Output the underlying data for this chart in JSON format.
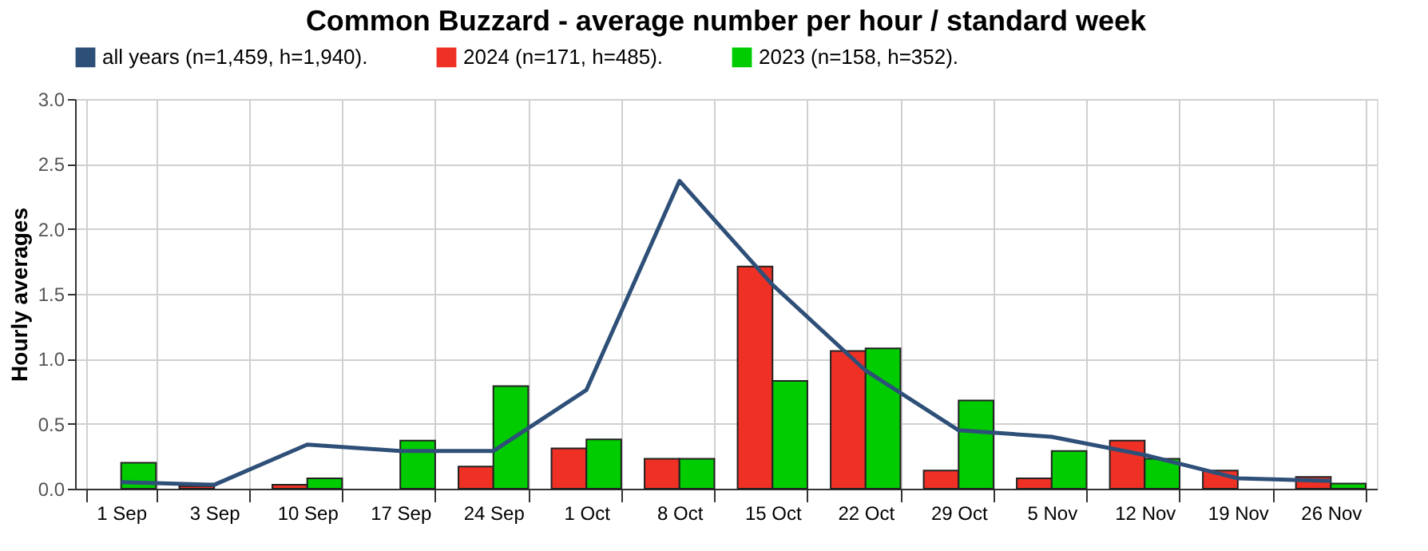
{
  "chart_data": {
    "type": "bar",
    "title": "Common Buzzard - average number per hour / standard week",
    "ylabel": "Hourly averages",
    "categories": [
      "1 Sep",
      "3 Sep",
      "10 Sep",
      "17 Sep",
      "24 Sep",
      "1 Oct",
      "8 Oct",
      "15 Oct",
      "22 Oct",
      "29 Oct",
      "5 Nov",
      "12 Nov",
      "19 Nov",
      "26 Nov"
    ],
    "series": [
      {
        "name": "all years (n=1,459, h=1,940).",
        "type": "line",
        "color": "#2e4f78",
        "values": [
          0.05,
          0.03,
          0.34,
          0.29,
          0.29,
          0.76,
          2.37,
          1.57,
          0.91,
          0.45,
          0.4,
          0.26,
          0.08,
          0.06
        ]
      },
      {
        "name": "2024 (n=171, h=485).",
        "color": "#ee3124",
        "values": [
          null,
          0.02,
          0.03,
          null,
          0.17,
          0.31,
          0.23,
          1.71,
          1.06,
          0.14,
          0.08,
          0.37,
          0.14,
          0.09
        ]
      },
      {
        "name": "2023 (n=158, h=352).",
        "color": "#00cc00",
        "values": [
          0.2,
          null,
          0.08,
          0.37,
          0.79,
          0.38,
          0.23,
          0.83,
          1.08,
          0.68,
          0.29,
          0.23,
          null,
          0.04
        ]
      }
    ],
    "ylim": [
      0,
      3
    ],
    "yticks": [
      {
        "value": 0,
        "label": "0.0"
      },
      {
        "value": 0.5,
        "label": "0.5"
      },
      {
        "value": 1,
        "label": "1.0"
      },
      {
        "value": 1.5,
        "label": "1.5"
      },
      {
        "value": 2,
        "label": "2.0"
      },
      {
        "value": 2.5,
        "label": "2.5"
      },
      {
        "value": 3,
        "label": "3.0"
      }
    ],
    "grid": true,
    "legend": "top left"
  }
}
